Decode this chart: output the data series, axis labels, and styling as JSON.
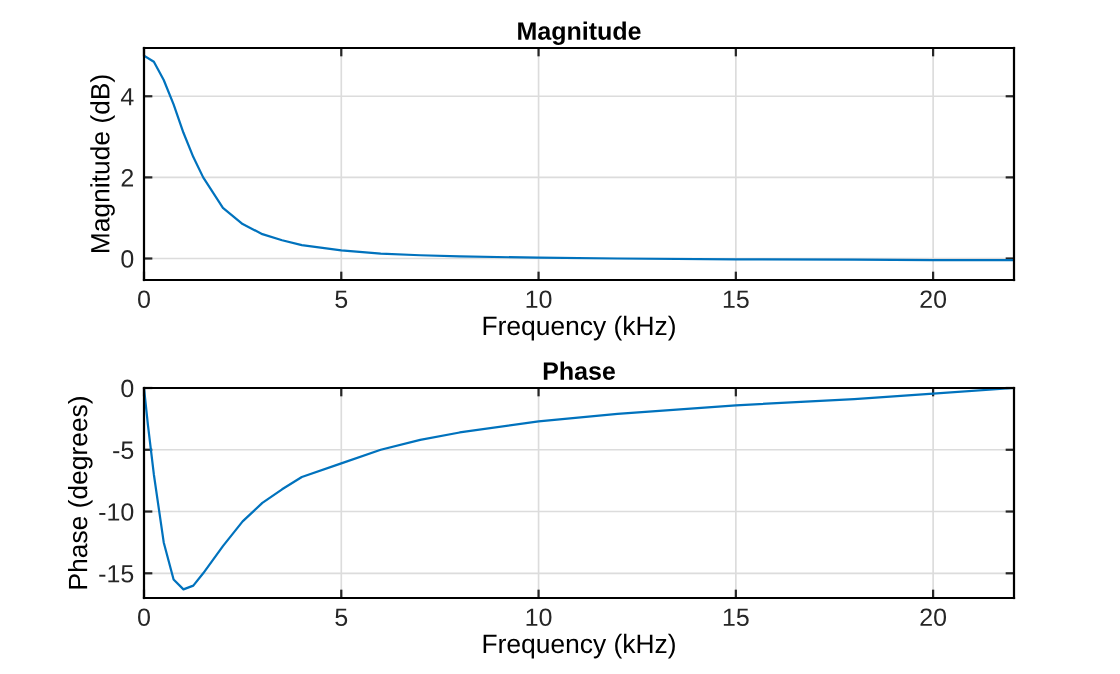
{
  "chart_data": [
    {
      "type": "line",
      "title": "Magnitude",
      "xlabel": "Frequency (kHz)",
      "ylabel": "Magnitude (dB)",
      "xlim": [
        0,
        22.05
      ],
      "ylim": [
        -0.53,
        5.19
      ],
      "xticks": [
        0,
        5,
        10,
        15,
        20
      ],
      "yticks": [
        0,
        2,
        4
      ],
      "grid": true,
      "series": [
        {
          "color": "#0072bd",
          "x": [
            0,
            0.25,
            0.5,
            0.75,
            1,
            1.25,
            1.5,
            2,
            2.5,
            3,
            3.5,
            4,
            5,
            6,
            7,
            8,
            10,
            12,
            15,
            18,
            20,
            22.05
          ],
          "values": [
            5.0,
            4.85,
            4.4,
            3.8,
            3.1,
            2.5,
            2.0,
            1.25,
            0.85,
            0.6,
            0.45,
            0.33,
            0.2,
            0.12,
            0.08,
            0.05,
            0.02,
            0,
            -0.02,
            -0.03,
            -0.04,
            -0.04
          ]
        }
      ]
    },
    {
      "type": "line",
      "title": "Phase",
      "xlabel": "Frequency (kHz)",
      "ylabel": "Phase (degrees)",
      "xlim": [
        0,
        22.05
      ],
      "ylim": [
        -17,
        0
      ],
      "xticks": [
        0,
        5,
        10,
        15,
        20
      ],
      "yticks": [
        -15,
        -10,
        -5,
        0
      ],
      "grid": true,
      "series": [
        {
          "color": "#0072bd",
          "x": [
            0,
            0.1,
            0.25,
            0.5,
            0.75,
            1,
            1.25,
            1.5,
            2,
            2.5,
            3,
            3.5,
            4,
            5,
            6,
            7,
            8,
            10,
            12,
            15,
            18,
            20,
            22.05
          ],
          "values": [
            0,
            -3,
            -7,
            -12.5,
            -15.5,
            -16.3,
            -16,
            -15,
            -12.8,
            -10.8,
            -9.3,
            -8.2,
            -7.2,
            -6.1,
            -5.0,
            -4.2,
            -3.6,
            -2.7,
            -2.1,
            -1.4,
            -0.9,
            -0.45,
            0
          ]
        }
      ]
    }
  ]
}
